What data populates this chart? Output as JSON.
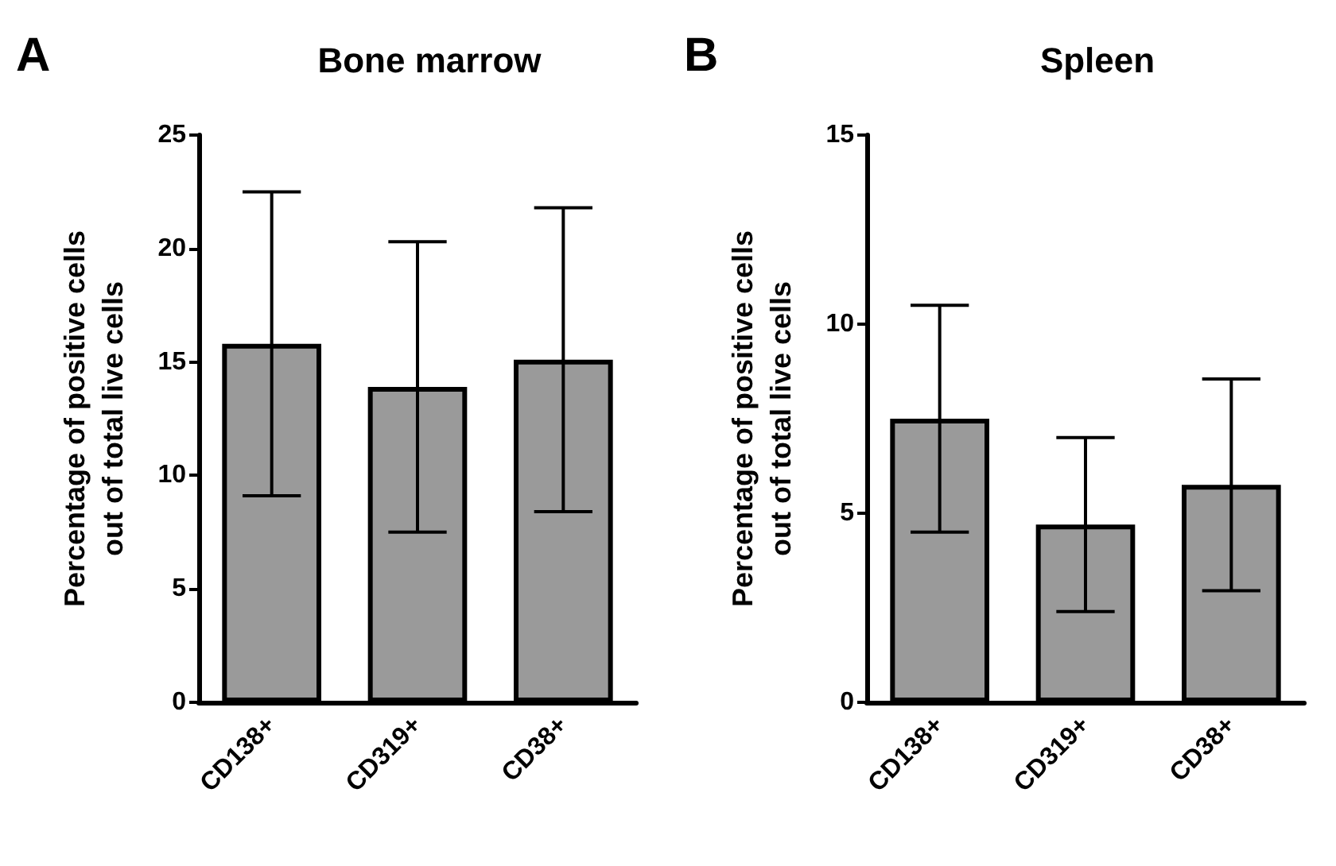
{
  "chart_data": [
    {
      "type": "bar",
      "title": "Bone marrow",
      "ylabel": "Percentage of positive cells\nout of total live cells",
      "annotations": [
        "A"
      ],
      "categories": [
        "CD138+",
        "CD319+",
        "CD38+"
      ],
      "series": [
        {
          "color": "#9a9a9a",
          "values": [
            15.8,
            13.9,
            15.1
          ],
          "errors": [
            6.7,
            6.4,
            6.7
          ]
        }
      ],
      "ylim": [
        0,
        25
      ],
      "yticks": [
        0,
        5,
        10,
        15,
        20,
        25
      ],
      "grid": false
    },
    {
      "type": "bar",
      "title": "Spleen",
      "ylabel": "Percentage of positive cells\nout of total live cells",
      "annotations": [
        "B"
      ],
      "categories": [
        "CD138+",
        "CD319+",
        "CD38+"
      ],
      "series": [
        {
          "color": "#9a9a9a",
          "values": [
            7.5,
            4.7,
            5.75
          ],
          "errors": [
            3.0,
            2.3,
            2.8
          ]
        }
      ],
      "ylim": [
        0,
        15
      ],
      "yticks": [
        0,
        5,
        10,
        15
      ],
      "grid": false
    }
  ]
}
